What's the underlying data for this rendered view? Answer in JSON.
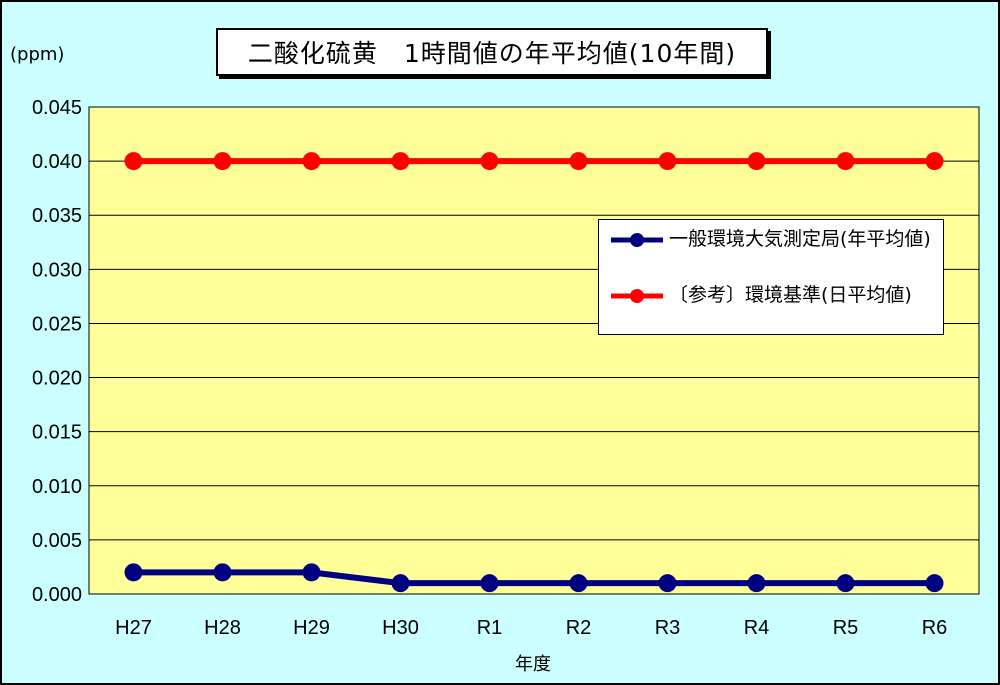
{
  "chart_data": {
    "type": "line",
    "title": "二酸化硫黄　1時間値の年平均値(10年間)",
    "ylabel": "(ppm)",
    "xlabel": "年度",
    "ylim": [
      0,
      0.045
    ],
    "yticks": [
      "0.000",
      "0.005",
      "0.010",
      "0.015",
      "0.020",
      "0.025",
      "0.030",
      "0.035",
      "0.040",
      "0.045"
    ],
    "ytick_values": [
      0,
      0.005,
      0.01,
      0.015,
      0.02,
      0.025,
      0.03,
      0.035,
      0.04,
      0.045
    ],
    "categories": [
      "H27",
      "H28",
      "H29",
      "H30",
      "R1",
      "R2",
      "R3",
      "R4",
      "R5",
      "R6"
    ],
    "grid": true,
    "legend_position": "right",
    "series": [
      {
        "name": "一般環境大気測定局(年平均値)",
        "color": "#000080",
        "values": [
          0.002,
          0.002,
          0.002,
          0.001,
          0.001,
          0.001,
          0.001,
          0.001,
          0.001,
          0.001
        ]
      },
      {
        "name": "〔参考〕環境基準(日平均値)",
        "color": "#ff0000",
        "values": [
          0.04,
          0.04,
          0.04,
          0.04,
          0.04,
          0.04,
          0.04,
          0.04,
          0.04,
          0.04
        ]
      }
    ],
    "plot_background": "#ffff99",
    "page_background": "#ccffff"
  }
}
